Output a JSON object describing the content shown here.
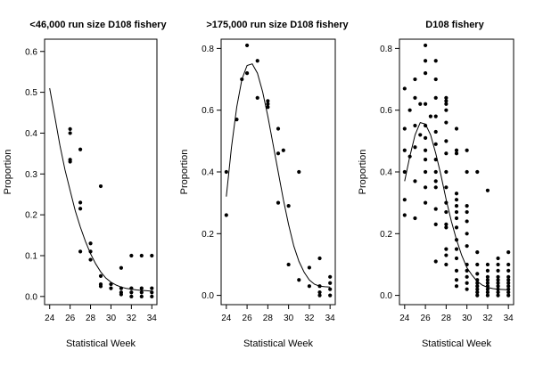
{
  "chart_data": [
    {
      "type": "scatter",
      "title": "<46,000 run size D108 fishery",
      "xlabel": "Statistical Week",
      "ylabel": "Proportion",
      "xlim": [
        23.5,
        34.5
      ],
      "ylim": [
        -0.02,
        0.63
      ],
      "xticks": [
        "24",
        "26",
        "28",
        "30",
        "32",
        "34"
      ],
      "yticks": [
        "0.0",
        "0.1",
        "0.2",
        "0.3",
        "0.4",
        "0.5",
        "0.6"
      ],
      "points": [
        {
          "x": 26,
          "y": 0.41
        },
        {
          "x": 26,
          "y": 0.4
        },
        {
          "x": 26,
          "y": 0.335
        },
        {
          "x": 26,
          "y": 0.33
        },
        {
          "x": 27,
          "y": 0.36
        },
        {
          "x": 27,
          "y": 0.23
        },
        {
          "x": 27,
          "y": 0.215
        },
        {
          "x": 27,
          "y": 0.11
        },
        {
          "x": 28,
          "y": 0.13
        },
        {
          "x": 28,
          "y": 0.11
        },
        {
          "x": 28,
          "y": 0.09
        },
        {
          "x": 29,
          "y": 0.27
        },
        {
          "x": 29,
          "y": 0.05
        },
        {
          "x": 29,
          "y": 0.03
        },
        {
          "x": 29,
          "y": 0.025
        },
        {
          "x": 30,
          "y": 0.03
        },
        {
          "x": 30,
          "y": 0.02
        },
        {
          "x": 31,
          "y": 0.07
        },
        {
          "x": 31,
          "y": 0.02
        },
        {
          "x": 31,
          "y": 0.01
        },
        {
          "x": 31,
          "y": 0.005
        },
        {
          "x": 32,
          "y": 0.1
        },
        {
          "x": 32,
          "y": 0.02
        },
        {
          "x": 32,
          "y": 0.01
        },
        {
          "x": 32,
          "y": 0.0
        },
        {
          "x": 33,
          "y": 0.1
        },
        {
          "x": 33,
          "y": 0.02
        },
        {
          "x": 33,
          "y": 0.01
        },
        {
          "x": 33,
          "y": 0.0
        },
        {
          "x": 34,
          "y": 0.1
        },
        {
          "x": 34,
          "y": 0.02
        },
        {
          "x": 34,
          "y": 0.01
        },
        {
          "x": 34,
          "y": 0.0
        }
      ],
      "curve": [
        [
          24.0,
          0.51
        ],
        [
          24.5,
          0.44
        ],
        [
          25.0,
          0.37
        ],
        [
          25.5,
          0.31
        ],
        [
          26.0,
          0.26
        ],
        [
          26.5,
          0.21
        ],
        [
          27.0,
          0.17
        ],
        [
          27.5,
          0.135
        ],
        [
          28.0,
          0.105
        ],
        [
          28.5,
          0.08
        ],
        [
          29.0,
          0.06
        ],
        [
          29.5,
          0.045
        ],
        [
          30.0,
          0.035
        ],
        [
          30.5,
          0.028
        ],
        [
          31.0,
          0.023
        ],
        [
          31.5,
          0.02
        ],
        [
          32.0,
          0.018
        ],
        [
          32.5,
          0.016
        ],
        [
          33.0,
          0.015
        ],
        [
          33.5,
          0.014
        ],
        [
          34.0,
          0.013
        ]
      ]
    },
    {
      "type": "scatter",
      "title": ">175,000 run size D108 fishery",
      "xlabel": "Statistical Week",
      "ylabel": "Proportion",
      "xlim": [
        23.5,
        34.5
      ],
      "ylim": [
        -0.03,
        0.83
      ],
      "xticks": [
        "24",
        "26",
        "28",
        "30",
        "32",
        "34"
      ],
      "yticks": [
        "0.0",
        "0.2",
        "0.4",
        "0.6",
        "0.8"
      ],
      "points": [
        {
          "x": 24,
          "y": 0.4
        },
        {
          "x": 24,
          "y": 0.26
        },
        {
          "x": 25,
          "y": 0.57
        },
        {
          "x": 25.5,
          "y": 0.7
        },
        {
          "x": 26,
          "y": 0.81
        },
        {
          "x": 26,
          "y": 0.72
        },
        {
          "x": 27,
          "y": 0.76
        },
        {
          "x": 27,
          "y": 0.64
        },
        {
          "x": 28,
          "y": 0.63
        },
        {
          "x": 28,
          "y": 0.62
        },
        {
          "x": 28,
          "y": 0.61
        },
        {
          "x": 29,
          "y": 0.54
        },
        {
          "x": 29,
          "y": 0.46
        },
        {
          "x": 29,
          "y": 0.3
        },
        {
          "x": 29.5,
          "y": 0.47
        },
        {
          "x": 30,
          "y": 0.29
        },
        {
          "x": 30,
          "y": 0.1
        },
        {
          "x": 31,
          "y": 0.4
        },
        {
          "x": 31,
          "y": 0.05
        },
        {
          "x": 32,
          "y": 0.09
        },
        {
          "x": 32,
          "y": 0.03
        },
        {
          "x": 33,
          "y": 0.12
        },
        {
          "x": 33,
          "y": 0.03
        },
        {
          "x": 33,
          "y": 0.01
        },
        {
          "x": 33,
          "y": 0.0
        },
        {
          "x": 34,
          "y": 0.06
        },
        {
          "x": 34,
          "y": 0.04
        },
        {
          "x": 34,
          "y": 0.02
        },
        {
          "x": 34,
          "y": 0.0
        }
      ],
      "curve": [
        [
          24.0,
          0.32
        ],
        [
          24.5,
          0.48
        ],
        [
          25.0,
          0.61
        ],
        [
          25.5,
          0.7
        ],
        [
          26.0,
          0.745
        ],
        [
          26.5,
          0.75
        ],
        [
          27.0,
          0.72
        ],
        [
          27.5,
          0.66
        ],
        [
          28.0,
          0.58
        ],
        [
          28.5,
          0.49
        ],
        [
          29.0,
          0.4
        ],
        [
          29.5,
          0.31
        ],
        [
          30.0,
          0.23
        ],
        [
          30.5,
          0.16
        ],
        [
          31.0,
          0.11
        ],
        [
          31.5,
          0.075
        ],
        [
          32.0,
          0.05
        ],
        [
          32.5,
          0.036
        ],
        [
          33.0,
          0.03
        ],
        [
          33.5,
          0.028
        ],
        [
          34.0,
          0.027
        ]
      ]
    },
    {
      "type": "scatter",
      "title": "D108 fishery",
      "xlabel": "Statistical Week",
      "ylabel": "Proportion",
      "xlim": [
        23.5,
        34.5
      ],
      "ylim": [
        -0.03,
        0.83
      ],
      "xticks": [
        "24",
        "26",
        "28",
        "30",
        "32",
        "34"
      ],
      "yticks": [
        "0.0",
        "0.2",
        "0.4",
        "0.6",
        "0.8"
      ],
      "points": [
        {
          "x": 24,
          "y": 0.67
        },
        {
          "x": 24,
          "y": 0.54
        },
        {
          "x": 24,
          "y": 0.47
        },
        {
          "x": 24,
          "y": 0.4
        },
        {
          "x": 24,
          "y": 0.31
        },
        {
          "x": 24,
          "y": 0.26
        },
        {
          "x": 24.5,
          "y": 0.6
        },
        {
          "x": 24.5,
          "y": 0.45
        },
        {
          "x": 25,
          "y": 0.7
        },
        {
          "x": 25,
          "y": 0.64
        },
        {
          "x": 25,
          "y": 0.55
        },
        {
          "x": 25,
          "y": 0.48
        },
        {
          "x": 25,
          "y": 0.37
        },
        {
          "x": 25,
          "y": 0.25
        },
        {
          "x": 25.5,
          "y": 0.62
        },
        {
          "x": 25.5,
          "y": 0.52
        },
        {
          "x": 26,
          "y": 0.81
        },
        {
          "x": 26,
          "y": 0.76
        },
        {
          "x": 26,
          "y": 0.72
        },
        {
          "x": 26,
          "y": 0.62
        },
        {
          "x": 26,
          "y": 0.55
        },
        {
          "x": 26,
          "y": 0.51
        },
        {
          "x": 26,
          "y": 0.47
        },
        {
          "x": 26,
          "y": 0.44
        },
        {
          "x": 26,
          "y": 0.4
        },
        {
          "x": 26,
          "y": 0.35
        },
        {
          "x": 26,
          "y": 0.3
        },
        {
          "x": 26.5,
          "y": 0.58
        },
        {
          "x": 27,
          "y": 0.76
        },
        {
          "x": 27,
          "y": 0.7
        },
        {
          "x": 27,
          "y": 0.64
        },
        {
          "x": 27,
          "y": 0.58
        },
        {
          "x": 27,
          "y": 0.53
        },
        {
          "x": 27,
          "y": 0.49
        },
        {
          "x": 27,
          "y": 0.44
        },
        {
          "x": 27,
          "y": 0.4
        },
        {
          "x": 27,
          "y": 0.37
        },
        {
          "x": 27,
          "y": 0.35
        },
        {
          "x": 27,
          "y": 0.28
        },
        {
          "x": 27,
          "y": 0.23
        },
        {
          "x": 27,
          "y": 0.11
        },
        {
          "x": 28,
          "y": 0.64
        },
        {
          "x": 28,
          "y": 0.63
        },
        {
          "x": 28,
          "y": 0.62
        },
        {
          "x": 28,
          "y": 0.6
        },
        {
          "x": 28,
          "y": 0.56
        },
        {
          "x": 28,
          "y": 0.5
        },
        {
          "x": 28,
          "y": 0.46
        },
        {
          "x": 28,
          "y": 0.4
        },
        {
          "x": 28,
          "y": 0.35
        },
        {
          "x": 28,
          "y": 0.3
        },
        {
          "x": 28,
          "y": 0.27
        },
        {
          "x": 28,
          "y": 0.23
        },
        {
          "x": 28,
          "y": 0.22
        },
        {
          "x": 28,
          "y": 0.15
        },
        {
          "x": 28,
          "y": 0.13
        },
        {
          "x": 28,
          "y": 0.1
        },
        {
          "x": 29,
          "y": 0.54
        },
        {
          "x": 29,
          "y": 0.47
        },
        {
          "x": 29,
          "y": 0.46
        },
        {
          "x": 29,
          "y": 0.33
        },
        {
          "x": 29,
          "y": 0.31
        },
        {
          "x": 29,
          "y": 0.29
        },
        {
          "x": 29,
          "y": 0.27
        },
        {
          "x": 29,
          "y": 0.25
        },
        {
          "x": 29,
          "y": 0.22
        },
        {
          "x": 29,
          "y": 0.18
        },
        {
          "x": 29,
          "y": 0.15
        },
        {
          "x": 29,
          "y": 0.12
        },
        {
          "x": 29,
          "y": 0.08
        },
        {
          "x": 29,
          "y": 0.05
        },
        {
          "x": 29,
          "y": 0.03
        },
        {
          "x": 30,
          "y": 0.47
        },
        {
          "x": 30,
          "y": 0.4
        },
        {
          "x": 30,
          "y": 0.29
        },
        {
          "x": 30,
          "y": 0.27
        },
        {
          "x": 30,
          "y": 0.24
        },
        {
          "x": 30,
          "y": 0.2
        },
        {
          "x": 30,
          "y": 0.16
        },
        {
          "x": 30,
          "y": 0.1
        },
        {
          "x": 30,
          "y": 0.08
        },
        {
          "x": 30,
          "y": 0.06
        },
        {
          "x": 30,
          "y": 0.04
        },
        {
          "x": 30,
          "y": 0.02
        },
        {
          "x": 31,
          "y": 0.4
        },
        {
          "x": 31,
          "y": 0.14
        },
        {
          "x": 31,
          "y": 0.1
        },
        {
          "x": 31,
          "y": 0.07
        },
        {
          "x": 31,
          "y": 0.05
        },
        {
          "x": 31,
          "y": 0.04
        },
        {
          "x": 31,
          "y": 0.03
        },
        {
          "x": 31,
          "y": 0.02
        },
        {
          "x": 31,
          "y": 0.01
        },
        {
          "x": 31,
          "y": 0.0
        },
        {
          "x": 32,
          "y": 0.34
        },
        {
          "x": 32,
          "y": 0.1
        },
        {
          "x": 32,
          "y": 0.08
        },
        {
          "x": 32,
          "y": 0.06
        },
        {
          "x": 32,
          "y": 0.05
        },
        {
          "x": 32,
          "y": 0.04
        },
        {
          "x": 32,
          "y": 0.03
        },
        {
          "x": 32,
          "y": 0.02
        },
        {
          "x": 32,
          "y": 0.01
        },
        {
          "x": 32,
          "y": 0.0
        },
        {
          "x": 33,
          "y": 0.12
        },
        {
          "x": 33,
          "y": 0.1
        },
        {
          "x": 33,
          "y": 0.08
        },
        {
          "x": 33,
          "y": 0.06
        },
        {
          "x": 33,
          "y": 0.05
        },
        {
          "x": 33,
          "y": 0.04
        },
        {
          "x": 33,
          "y": 0.03
        },
        {
          "x": 33,
          "y": 0.02
        },
        {
          "x": 33,
          "y": 0.01
        },
        {
          "x": 33,
          "y": 0.0
        },
        {
          "x": 34,
          "y": 0.14
        },
        {
          "x": 34,
          "y": 0.1
        },
        {
          "x": 34,
          "y": 0.08
        },
        {
          "x": 34,
          "y": 0.06
        },
        {
          "x": 34,
          "y": 0.05
        },
        {
          "x": 34,
          "y": 0.04
        },
        {
          "x": 34,
          "y": 0.03
        },
        {
          "x": 34,
          "y": 0.02
        },
        {
          "x": 34,
          "y": 0.01
        },
        {
          "x": 34,
          "y": 0.0
        }
      ],
      "curve": [
        [
          24.0,
          0.37
        ],
        [
          24.5,
          0.45
        ],
        [
          25.0,
          0.52
        ],
        [
          25.5,
          0.56
        ],
        [
          26.0,
          0.555
        ],
        [
          26.5,
          0.52
        ],
        [
          27.0,
          0.46
        ],
        [
          27.5,
          0.39
        ],
        [
          28.0,
          0.31
        ],
        [
          28.5,
          0.24
        ],
        [
          29.0,
          0.18
        ],
        [
          29.5,
          0.13
        ],
        [
          30.0,
          0.09
        ],
        [
          30.5,
          0.065
        ],
        [
          31.0,
          0.045
        ],
        [
          31.5,
          0.033
        ],
        [
          32.0,
          0.026
        ],
        [
          32.5,
          0.022
        ],
        [
          33.0,
          0.02
        ],
        [
          33.5,
          0.019
        ],
        [
          34.0,
          0.018
        ]
      ]
    }
  ]
}
